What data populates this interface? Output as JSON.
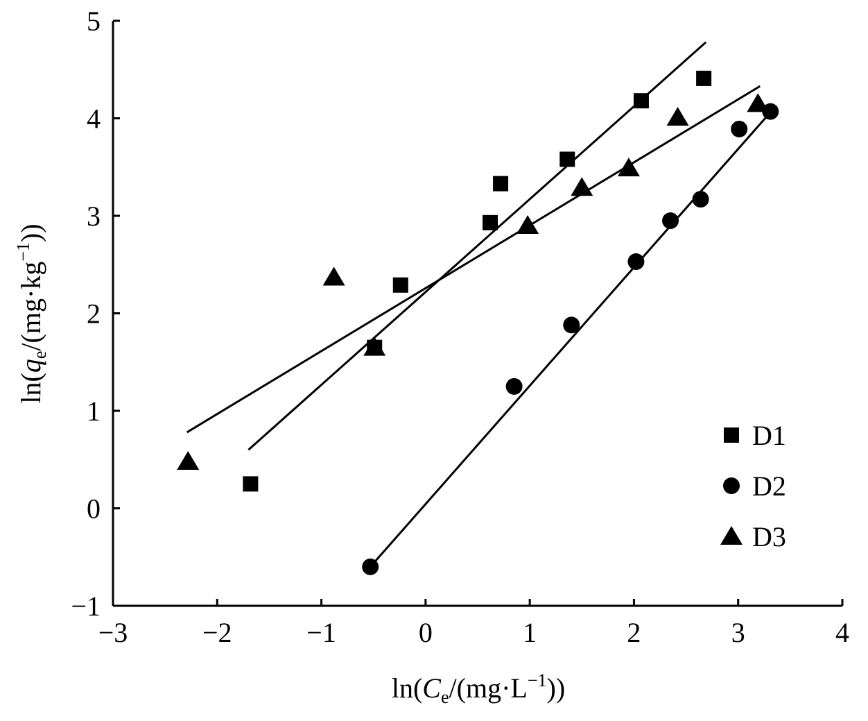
{
  "chart_data": {
    "type": "scatter",
    "title": "",
    "xlabel": {
      "prefix": "ln(",
      "var": "C",
      "sub": "e",
      "unit": "/(mg·L",
      "sup": "−1",
      "suffix": "))"
    },
    "ylabel": {
      "prefix": "ln(",
      "var": "q",
      "sub": "e",
      "unit": "/(mg·kg",
      "sup": "−1",
      "suffix": "))"
    },
    "xlim": [
      -3,
      4
    ],
    "ylim": [
      -1,
      5
    ],
    "xticks": [
      -3,
      -2,
      -1,
      0,
      1,
      2,
      3,
      4
    ],
    "yticks": [
      -1,
      0,
      1,
      2,
      3,
      4,
      5
    ],
    "xtick_labels": [
      "−3",
      "−2",
      "−1",
      "0",
      "1",
      "2",
      "3",
      "4"
    ],
    "ytick_labels": [
      "−1",
      "0",
      "1",
      "2",
      "3",
      "4",
      "5"
    ],
    "grid": false,
    "legend_position": "bottom-right",
    "series": [
      {
        "name": "D1",
        "marker": "square",
        "x": [
          -1.68,
          -0.49,
          -0.24,
          0.62,
          0.72,
          1.36,
          2.07,
          2.67
        ],
        "y": [
          0.25,
          1.65,
          2.29,
          2.93,
          3.33,
          3.58,
          4.18,
          4.41
        ],
        "fit": {
          "x": [
            -1.7,
            2.69
          ],
          "y": [
            0.6,
            4.78
          ]
        }
      },
      {
        "name": "D2",
        "marker": "circle",
        "x": [
          -0.53,
          0.85,
          1.4,
          2.02,
          2.35,
          2.64,
          3.01,
          3.31
        ],
        "y": [
          -0.6,
          1.25,
          1.88,
          2.53,
          2.95,
          3.17,
          3.89,
          4.07
        ],
        "fit": {
          "x": [
            -0.53,
            3.3
          ],
          "y": [
            -0.6,
            4.05
          ]
        }
      },
      {
        "name": "D3",
        "marker": "triangle",
        "x": [
          -2.28,
          -0.88,
          -0.49,
          0.98,
          1.5,
          1.95,
          2.42,
          3.19
        ],
        "y": [
          0.48,
          2.37,
          1.65,
          2.9,
          3.29,
          3.49,
          4.01,
          4.15
        ],
        "fit": {
          "x": [
            -2.29,
            3.21
          ],
          "y": [
            0.78,
            4.33
          ]
        }
      }
    ]
  }
}
